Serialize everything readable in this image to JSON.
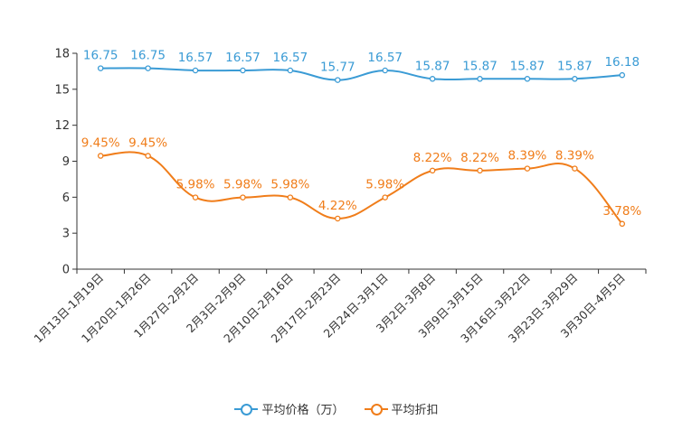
{
  "chart_data": {
    "type": "line",
    "categories": [
      "1月13日-1月19日",
      "1月20日-1月26日",
      "1月27日-2月2日",
      "2月3日-2月9日",
      "2月10日-2月16日",
      "2月17日-2月23日",
      "2月24日-3月1日",
      "3月2日-3月8日",
      "3月9日-3月15日",
      "3月16日-3月22日",
      "3月23日-3月29日",
      "3月30日-4月5日"
    ],
    "ylim": [
      0,
      18
    ],
    "yticks": [
      0,
      3,
      6,
      9,
      12,
      15,
      18
    ],
    "series": [
      {
        "name": "平均价格（万）",
        "color": "#3a9bd5",
        "values": [
          16.75,
          16.75,
          16.57,
          16.57,
          16.57,
          15.77,
          16.57,
          15.87,
          15.87,
          15.87,
          15.87,
          16.18
        ],
        "labels": [
          "16.75",
          "16.75",
          "16.57",
          "16.57",
          "16.57",
          "15.77",
          "16.57",
          "15.87",
          "15.87",
          "15.87",
          "15.87",
          "16.18"
        ]
      },
      {
        "name": "平均折扣",
        "color": "#f07d1a",
        "values": [
          9.45,
          9.45,
          5.98,
          5.98,
          5.98,
          4.22,
          5.98,
          8.22,
          8.22,
          8.39,
          8.39,
          3.78
        ],
        "labels": [
          "9.45%",
          "9.45%",
          "5.98%",
          "5.98%",
          "5.98%",
          "4.22%",
          "5.98%",
          "8.22%",
          "8.22%",
          "8.39%",
          "8.39%",
          "3.78%"
        ]
      }
    ]
  },
  "legend": {
    "items": [
      {
        "label": "平均价格（万）",
        "color": "#3a9bd5"
      },
      {
        "label": "平均折扣",
        "color": "#f07d1a"
      }
    ]
  }
}
